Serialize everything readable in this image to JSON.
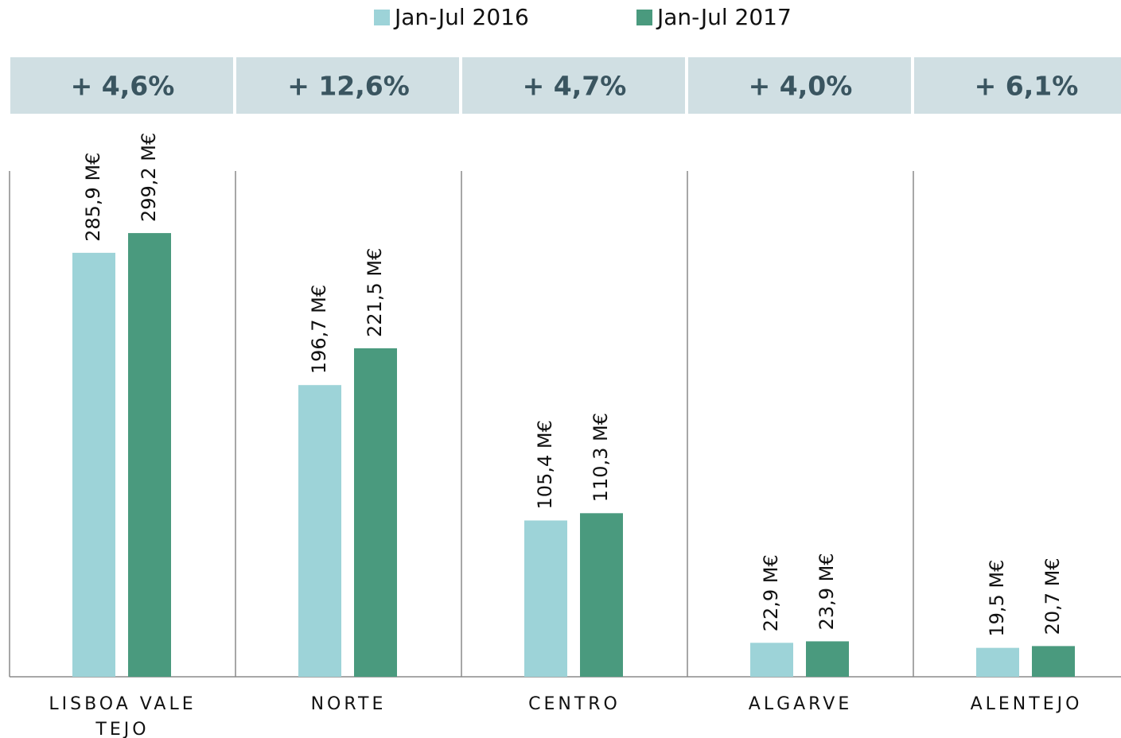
{
  "chart_data": {
    "type": "bar",
    "categories": [
      "LISBOA VALE TEJO",
      "NORTE",
      "CENTRO",
      "ALGARVE",
      "ALENTEJO"
    ],
    "annotations": [
      "+ 4,6%",
      "+ 12,6%",
      "+ 4,7%",
      "+ 4,0%",
      "+ 6,1%"
    ],
    "series": [
      {
        "name": "Jan-Jul 2016",
        "color": "#9dd3d8",
        "values": [
          285.9,
          196.7,
          105.4,
          22.9,
          19.5
        ],
        "value_labels": [
          "285,9 M€",
          "196,7 M€",
          "105,4 M€",
          "22,9 M€",
          "19,5 M€"
        ]
      },
      {
        "name": "Jan-Jul 2017",
        "color": "#4a9a7e",
        "values": [
          299.2,
          221.5,
          110.3,
          23.9,
          20.7
        ],
        "value_labels": [
          "299,2 M€",
          "221,5 M€",
          "110,3 M€",
          "23,9 M€",
          "20,7 M€"
        ]
      }
    ],
    "ylim": [
      0,
      340
    ],
    "legend": "top"
  }
}
